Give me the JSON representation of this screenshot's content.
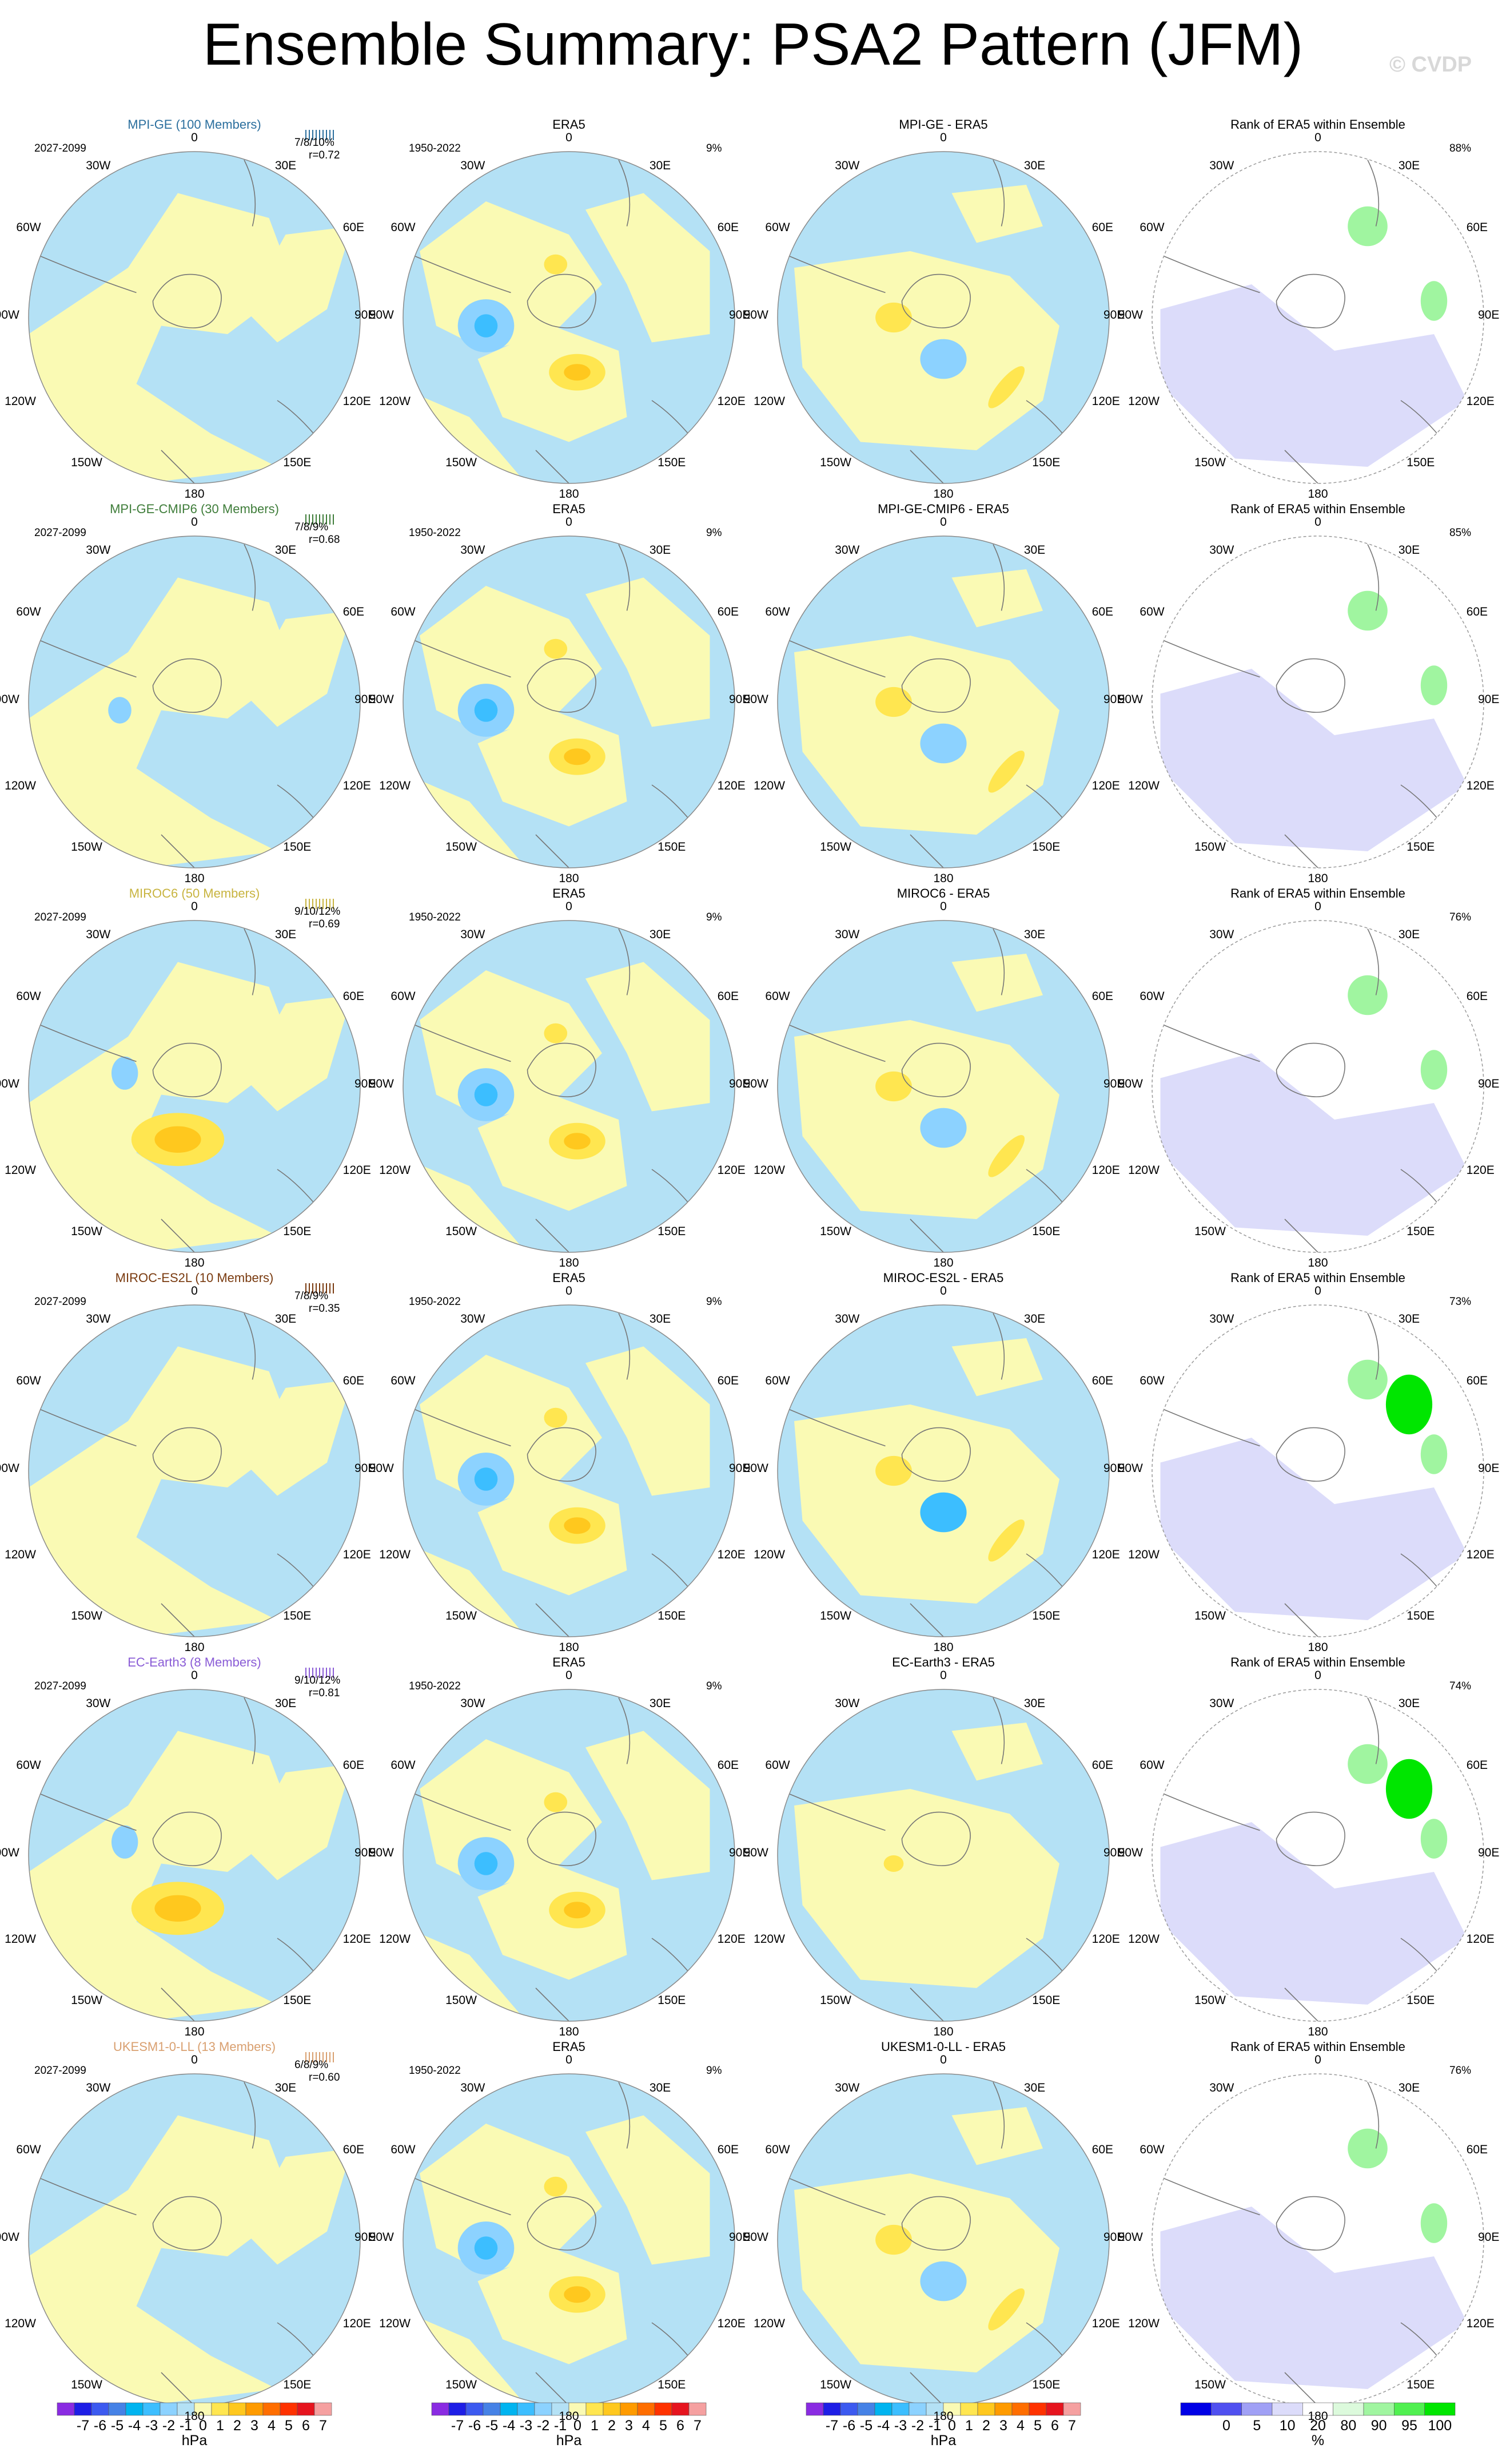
{
  "figure": {
    "title": "Ensemble Summary: PSA2 Pattern (JFM)",
    "credit": "© CVDP"
  },
  "rows": [
    {
      "model_title": "MPI-GE (100 Members)",
      "model_color": "#2b6f9e",
      "model_period": "2027-2099",
      "pct": "7/8/10%",
      "r": "r=0.72",
      "diff_title": "MPI-GE - ERA5",
      "rank_pct": "88%"
    },
    {
      "model_title": "MPI-GE-CMIP6 (30 Members)",
      "model_color": "#3f7d3a",
      "model_period": "2027-2099",
      "pct": "7/8/9%",
      "r": "r=0.68",
      "diff_title": "MPI-GE-CMIP6 - ERA5",
      "rank_pct": "85%"
    },
    {
      "model_title": "MIROC6 (50 Members)",
      "model_color": "#c8b440",
      "model_period": "2027-2099",
      "pct": "9/10/12%",
      "r": "r=0.69",
      "diff_title": "MIROC6 - ERA5",
      "rank_pct": "76%"
    },
    {
      "model_title": "MIROC-ES2L (10 Members)",
      "model_color": "#7a3b10",
      "model_period": "2027-2099",
      "pct": "7/8/9%",
      "r": "r=0.35",
      "diff_title": "MIROC-ES2L - ERA5",
      "rank_pct": "73%"
    },
    {
      "model_title": "EC-Earth3 (8 Members)",
      "model_color": "#8a5cd6",
      "model_period": "2027-2099",
      "pct": "9/10/12%",
      "r": "r=0.81",
      "diff_title": "EC-Earth3 - ERA5",
      "rank_pct": "74%"
    },
    {
      "model_title": "UKESM1-0-LL (13 Members)",
      "model_color": "#d9a070",
      "model_period": "2027-2099",
      "pct": "6/8/9%",
      "r": "r=0.60",
      "diff_title": "UKESM1-0-LL - ERA5",
      "rank_pct": "76%"
    }
  ],
  "obs": {
    "title": "ERA5",
    "period": "1950-2022",
    "pct": "9%"
  },
  "rank_title": "Rank of ERA5 within Ensemble",
  "map_labels": {
    "top": "0",
    "bottom": "180",
    "w30": "30W",
    "e30": "30E",
    "w60": "60W",
    "e60": "60E",
    "w90": "90W",
    "e90": "90E",
    "w120": "120W",
    "e120": "120E",
    "w150": "150W",
    "e150": "150E"
  },
  "colorbars": {
    "hpa_ticks": [
      "-7",
      "-6",
      "-5",
      "-4",
      "-3",
      "-2",
      "-1",
      "0",
      "1",
      "2",
      "3",
      "4",
      "5",
      "6",
      "7"
    ],
    "hpa_unit": "hPa",
    "hpa_colors": [
      "#8a2be2",
      "#1e1ee6",
      "#3c5af0",
      "#4682e6",
      "#00b4f0",
      "#3cbeff",
      "#8cd2ff",
      "#b4e1f5",
      "#fafab4",
      "#ffe650",
      "#ffc81e",
      "#ff9b00",
      "#ff6e00",
      "#ff3200",
      "#e6141e",
      "#f5a0a0"
    ],
    "rank_ticks": [
      "0",
      "5",
      "10",
      "20",
      "80",
      "90",
      "95",
      "100"
    ],
    "rank_unit": "%",
    "rank_colors": [
      "#0000e6",
      "#5050f0",
      "#a0a0f5",
      "#dcdcfa",
      "#ffffff",
      "#dcfadc",
      "#a0f5a0",
      "#50f050",
      "#00e600"
    ]
  }
}
